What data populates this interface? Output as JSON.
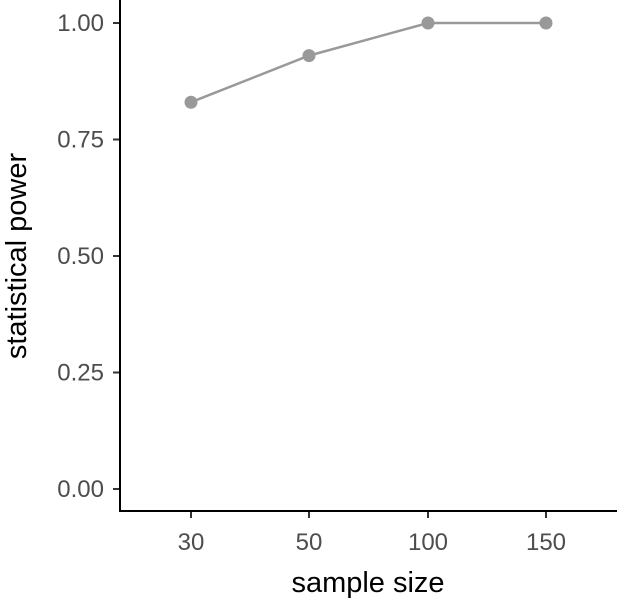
{
  "chart_data": {
    "type": "line",
    "categories": [
      "30",
      "50",
      "100",
      "150"
    ],
    "series": [
      {
        "values": [
          0.83,
          0.93,
          1.0,
          1.0
        ]
      }
    ],
    "xlabel": "sample size",
    "ylabel": "statistical power",
    "ylim": [
      0,
      1
    ],
    "yticks": [
      "0.00",
      "0.25",
      "0.50",
      "0.75",
      "1.00"
    ],
    "ytick_values": [
      0,
      0.25,
      0.5,
      0.75,
      1.0
    ],
    "grid": false,
    "line_color": "#999999",
    "point_color": "#999999"
  }
}
